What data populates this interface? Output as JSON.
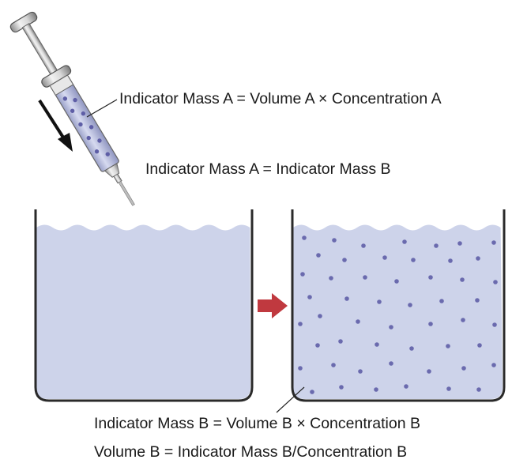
{
  "labels": {
    "syringe_equation": "Indicator Mass A = Volume A × Concentration A",
    "mass_equality": "Indicator Mass A = Indicator Mass B",
    "mass_b_equation": "Indicator Mass B = Volume B × Concentration B",
    "volume_b_equation": "Volume B = Indicator Mass B/Concentration B"
  },
  "colors": {
    "liquid": "#cdd3ea",
    "dots": "#6a6aae",
    "arrow": "#c0393f",
    "outline": "#2a2a2a"
  }
}
